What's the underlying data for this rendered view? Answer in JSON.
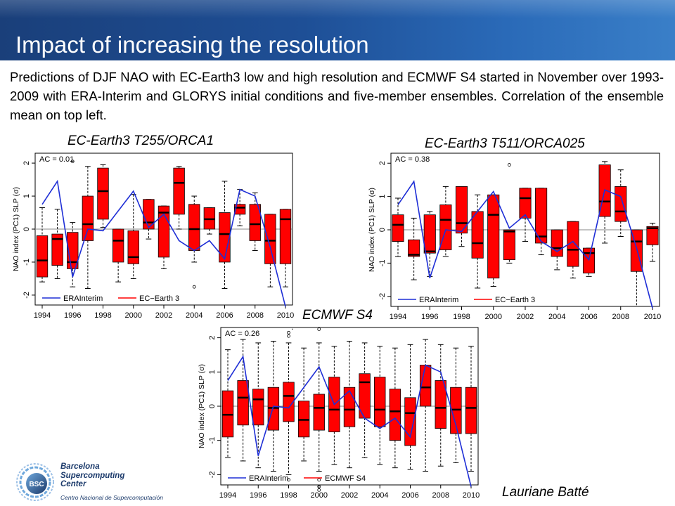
{
  "header": {
    "title": "Impact of increasing the resolution"
  },
  "intro": "Predictions of DJF NAO with EC-Earth3 low and high resolution and ECMWF S4 started in November over 1993-2009 with ERA-Interim and GLORYS initial conditions and five-member ensembles. Correlation of the ensemble mean on top left.",
  "author": "Lauriane Batté",
  "logo": {
    "name": "Barcelona Supercomputing Center",
    "lines": [
      "Barcelona",
      "Supercomputing",
      "Center"
    ],
    "sub": "Centro Nacional de Supercomputación",
    "mark": "BSC"
  },
  "colors": {
    "box": "#ff0000",
    "observed": "#1f2fd6",
    "title_bar": "#1e4f96"
  },
  "chart_data": [
    {
      "type": "boxplot",
      "title": "EC-Earth3 T255/ORCA1",
      "ac_label": "AC = 0.01",
      "ylabel": "NAO index (PC1) SLP (σ)",
      "ylim": [
        -2.3,
        2.3
      ],
      "yticks": [
        -2,
        -1,
        0,
        1,
        2
      ],
      "years": [
        1994,
        1995,
        1996,
        1997,
        1998,
        1999,
        2000,
        2001,
        2002,
        2003,
        2004,
        2005,
        2006,
        2007,
        2008,
        2009,
        2010
      ],
      "xtick_labels": [
        "1994",
        "1996",
        "1998",
        "2000",
        "2002",
        "2004",
        "2006",
        "2008",
        "2010"
      ],
      "legend": [
        "ERAInterim",
        "EC−Earth 3"
      ],
      "boxes": [
        {
          "lo": -1.6,
          "q1": -1.45,
          "med": -0.95,
          "q3": -0.2,
          "hi": 0.65
        },
        {
          "lo": -1.5,
          "q1": -1.1,
          "med": -0.3,
          "q3": -0.15,
          "hi": 0.6
        },
        {
          "lo": -1.75,
          "q1": -1.2,
          "med": -1.0,
          "q3": -0.1,
          "hi": 0.2
        },
        {
          "lo": -1.8,
          "q1": -0.35,
          "med": 0.15,
          "q3": 1.0,
          "hi": 1.9
        },
        {
          "lo": 0.05,
          "q1": 0.3,
          "med": 1.15,
          "q3": 1.85,
          "hi": 1.95
        },
        {
          "lo": -1.6,
          "q1": -1.0,
          "med": -0.35,
          "q3": 0.0,
          "hi": 0.0
        },
        {
          "lo": -1.5,
          "q1": -1.05,
          "med": -0.85,
          "q3": -0.05,
          "hi": 1.05
        },
        {
          "lo": -0.3,
          "q1": 0.0,
          "med": 0.2,
          "q3": 0.9,
          "hi": 0.9
        },
        {
          "lo": -1.2,
          "q1": -0.85,
          "med": 0.5,
          "q3": 0.7,
          "hi": 0.7
        },
        {
          "lo": 0.0,
          "q1": 0.45,
          "med": 1.4,
          "q3": 1.85,
          "hi": 1.9
        },
        {
          "lo": -1.0,
          "q1": -0.65,
          "med": 0.0,
          "q3": 0.75,
          "hi": 1.0
        },
        {
          "lo": -0.15,
          "q1": 0.0,
          "med": 0.3,
          "q3": 0.65,
          "hi": 0.65
        },
        {
          "lo": -1.8,
          "q1": -1.0,
          "med": -0.15,
          "q3": 0.5,
          "hi": 1.45
        },
        {
          "lo": 0.1,
          "q1": 0.45,
          "med": 0.65,
          "q3": 0.75,
          "hi": 1.2
        },
        {
          "lo": -0.65,
          "q1": -0.35,
          "med": 0.15,
          "q3": 0.75,
          "hi": 1.1
        },
        {
          "lo": -1.75,
          "q1": -1.05,
          "med": -0.35,
          "q3": 0.45,
          "hi": 0.45
        },
        {
          "lo": -1.75,
          "q1": -1.05,
          "med": 0.3,
          "q3": 0.6,
          "hi": 0.6
        }
      ],
      "outliers": [
        [
          1996,
          2.05
        ],
        [
          2004,
          -1.75
        ]
      ],
      "observed": [
        0.75,
        1.45,
        -1.45,
        0.0,
        -0.05,
        0.55,
        1.15,
        0.05,
        0.45,
        -0.35,
        -0.65,
        -0.35,
        -0.9,
        1.2,
        1.0,
        -0.55,
        -2.35
      ]
    },
    {
      "type": "boxplot",
      "title": "EC-Earth3 T511/ORCA025",
      "ac_label": "AC = 0.38",
      "ylabel": "NAO index (PC1) SLP (σ)",
      "ylim": [
        -2.3,
        2.3
      ],
      "yticks": [
        -2,
        -1,
        0,
        1,
        2
      ],
      "years": [
        1994,
        1995,
        1996,
        1997,
        1998,
        1999,
        2000,
        2001,
        2002,
        2003,
        2004,
        2005,
        2006,
        2007,
        2008,
        2009,
        2010
      ],
      "xtick_labels": [
        "1994",
        "1996",
        "1998",
        "2000",
        "2002",
        "2004",
        "2006",
        "2008",
        "2010"
      ],
      "legend": [
        "ERAInterim",
        "EC−Earth 3"
      ],
      "boxes": [
        {
          "lo": -0.8,
          "q1": -0.35,
          "med": 0.15,
          "q3": 0.45,
          "hi": 0.95
        },
        {
          "lo": -1.5,
          "q1": -0.8,
          "med": -0.75,
          "q3": -0.3,
          "hi": 0.35
        },
        {
          "lo": -1.4,
          "q1": -0.7,
          "med": -0.65,
          "q3": 0.45,
          "hi": 0.55
        },
        {
          "lo": -0.8,
          "q1": -0.6,
          "med": 0.3,
          "q3": 0.75,
          "hi": 1.3
        },
        {
          "lo": -0.5,
          "q1": -0.1,
          "med": 0.2,
          "q3": 1.3,
          "hi": 1.3
        },
        {
          "lo": -1.75,
          "q1": -0.85,
          "med": -0.4,
          "q3": 0.55,
          "hi": 1.05
        },
        {
          "lo": -1.7,
          "q1": -1.45,
          "med": 0.45,
          "q3": 1.05,
          "hi": 1.05
        },
        {
          "lo": -1.0,
          "q1": -0.9,
          "med": -0.05,
          "q3": 0.0,
          "hi": 0.0
        },
        {
          "lo": -0.35,
          "q1": 0.35,
          "med": 0.95,
          "q3": 1.25,
          "hi": 1.25
        },
        {
          "lo": -0.75,
          "q1": -0.4,
          "med": -0.2,
          "q3": 1.25,
          "hi": 1.25
        },
        {
          "lo": -1.2,
          "q1": -0.8,
          "med": -0.55,
          "q3": 0.0,
          "hi": 0.0
        },
        {
          "lo": -1.45,
          "q1": -1.1,
          "med": -0.6,
          "q3": 0.25,
          "hi": 0.25
        },
        {
          "lo": -1.4,
          "q1": -1.3,
          "med": -0.7,
          "q3": -0.55,
          "hi": -0.55
        },
        {
          "lo": -0.4,
          "q1": 0.4,
          "med": 0.85,
          "q3": 1.95,
          "hi": 2.05
        },
        {
          "lo": -0.2,
          "q1": 0.25,
          "med": 0.55,
          "q3": 1.3,
          "hi": 1.8
        },
        {
          "lo": -2.3,
          "q1": -1.25,
          "med": -0.35,
          "q3": 0.0,
          "hi": 0.0
        },
        {
          "lo": -0.95,
          "q1": -0.45,
          "med": 0.05,
          "q3": 0.1,
          "hi": 0.2
        }
      ],
      "outliers": [
        [
          2001,
          1.95
        ]
      ],
      "observed": [
        0.75,
        1.45,
        -1.45,
        0.0,
        -0.05,
        0.55,
        1.15,
        0.05,
        0.45,
        -0.35,
        -0.65,
        -0.35,
        -0.9,
        1.2,
        1.0,
        -0.55,
        -2.35
      ]
    },
    {
      "type": "boxplot",
      "title": "ECMWF S4",
      "ac_label": "AC = 0.26",
      "ylabel": "NAO index (PC1) SLP (σ)",
      "ylim": [
        -2.3,
        2.3
      ],
      "yticks": [
        -2,
        -1,
        0,
        1,
        2
      ],
      "years": [
        1994,
        1995,
        1996,
        1997,
        1998,
        1999,
        2000,
        2001,
        2002,
        2003,
        2004,
        2005,
        2006,
        2007,
        2008,
        2009,
        2010
      ],
      "xtick_labels": [
        "1994",
        "1996",
        "1998",
        "2000",
        "2002",
        "2004",
        "2006",
        "2008",
        "2010"
      ],
      "legend": [
        "ERAInterim",
        "ECMWF S4"
      ],
      "boxes": [
        {
          "lo": -1.5,
          "q1": -0.9,
          "med": -0.25,
          "q3": 0.45,
          "hi": 1.65
        },
        {
          "lo": -1.6,
          "q1": -0.55,
          "med": 0.25,
          "q3": 0.75,
          "hi": 1.95
        },
        {
          "lo": -1.8,
          "q1": -0.55,
          "med": 0.2,
          "q3": 0.5,
          "hi": 1.85
        },
        {
          "lo": -1.9,
          "q1": -0.7,
          "med": -0.05,
          "q3": 0.55,
          "hi": 1.9
        },
        {
          "lo": -2.0,
          "q1": -0.45,
          "med": 0.3,
          "q3": 0.7,
          "hi": 1.85
        },
        {
          "lo": -1.6,
          "q1": -0.9,
          "med": -0.4,
          "q3": 0.15,
          "hi": 1.7
        },
        {
          "lo": -1.9,
          "q1": -0.7,
          "med": -0.05,
          "q3": 0.35,
          "hi": 1.85
        },
        {
          "lo": -1.7,
          "q1": -0.75,
          "med": -0.1,
          "q3": 0.85,
          "hi": 1.75
        },
        {
          "lo": -1.8,
          "q1": -0.6,
          "med": -0.1,
          "q3": 0.55,
          "hi": 1.9
        },
        {
          "lo": -1.5,
          "q1": -0.35,
          "med": 0.7,
          "q3": 0.95,
          "hi": 1.85
        },
        {
          "lo": -1.7,
          "q1": -0.6,
          "med": -0.1,
          "q3": 0.85,
          "hi": 1.75
        },
        {
          "lo": -1.8,
          "q1": -1.0,
          "med": -0.15,
          "q3": 0.5,
          "hi": 1.7
        },
        {
          "lo": -1.85,
          "q1": -1.15,
          "med": -0.2,
          "q3": 0.25,
          "hi": 1.8
        },
        {
          "lo": -1.9,
          "q1": 0.0,
          "med": 0.55,
          "q3": 1.2,
          "hi": 1.95
        },
        {
          "lo": -1.75,
          "q1": -0.65,
          "med": -0.05,
          "q3": 0.75,
          "hi": 1.8
        },
        {
          "lo": -1.65,
          "q1": -0.8,
          "med": -0.1,
          "q3": 0.55,
          "hi": 1.7
        },
        {
          "lo": -1.9,
          "q1": -0.8,
          "med": -0.05,
          "q3": 0.55,
          "hi": 1.75
        }
      ],
      "outliers": [
        [
          1998,
          2.05
        ],
        [
          1998,
          2.15
        ],
        [
          2000,
          2.25
        ],
        [
          1998,
          -2.15
        ],
        [
          2000,
          -2.15
        ],
        [
          2000,
          -2.35
        ],
        [
          2000,
          -2.45
        ]
      ],
      "observed": [
        0.75,
        1.45,
        -1.45,
        0.0,
        -0.05,
        0.55,
        1.15,
        0.05,
        0.45,
        -0.35,
        -0.65,
        -0.35,
        -0.9,
        1.2,
        1.0,
        -0.55,
        -2.35
      ]
    }
  ]
}
